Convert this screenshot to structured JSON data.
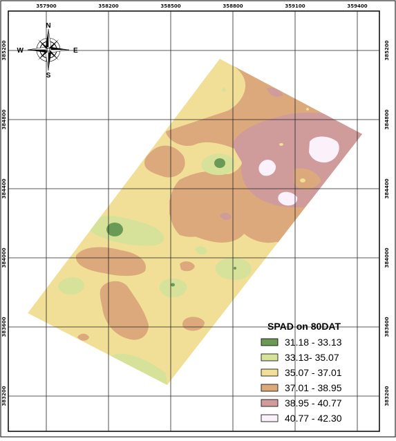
{
  "map": {
    "colors": {
      "class1": "#6a9a55",
      "class2": "#d6e29a",
      "class3": "#f1df97",
      "class4": "#dca97d",
      "class5": "#cf9b9b",
      "class6": "#fbf1fb",
      "grid": "#222222",
      "frame": "#000000"
    },
    "x_ticks": [
      "357900",
      "358200",
      "358500",
      "358800",
      "359100",
      "359400"
    ],
    "y_ticks_left": [
      "385200",
      "384800",
      "384400",
      "384000",
      "383600",
      "383200"
    ],
    "y_ticks_right": [
      "385200",
      "384800",
      "384400",
      "384000",
      "383600",
      "383200"
    ],
    "compass": {
      "n": "N",
      "s": "S",
      "e": "E",
      "w": "W",
      "icon": "north-arrow-compass-rose"
    },
    "legend": {
      "title": "SPAD on 80DAT",
      "items": [
        {
          "label": "31.18 - 33.13",
          "color": "#6a9a55"
        },
        {
          "label": "33.13- 35.07",
          "color": "#d6e29a"
        },
        {
          "label": "35.07 - 37.01",
          "color": "#f1df97"
        },
        {
          "label": "37.01 - 38.95",
          "color": "#dca97d"
        },
        {
          "label": "38.95 - 40.77",
          "color": "#cf9b9b"
        },
        {
          "label": "40.77 - 42.30",
          "color": "#fbf1fb"
        }
      ]
    }
  }
}
